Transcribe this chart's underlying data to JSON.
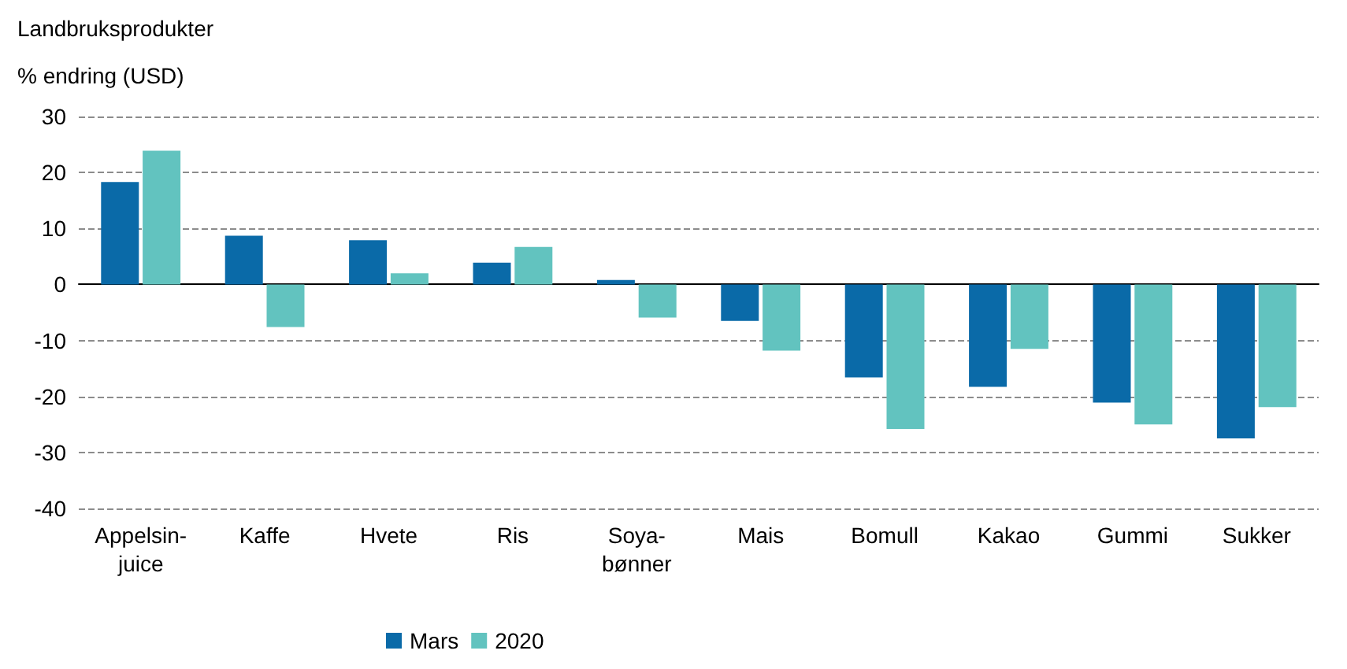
{
  "chart_data": {
    "type": "bar",
    "title": "Landbruksprodukter",
    "ylabel": "% endring (USD)",
    "categories": [
      "Appelsin-\njuice",
      "Kaffe",
      "Hvete",
      "Ris",
      "Soya-\nbønner",
      "Mais",
      "Bomull",
      "Kakao",
      "Gummi",
      "Sukker"
    ],
    "series": [
      {
        "name": "Mars",
        "color": "#0a6aa8",
        "values": [
          18.3,
          8.7,
          7.9,
          3.9,
          0.8,
          -6.5,
          -16.6,
          -18.3,
          -21.1,
          -27.5
        ]
      },
      {
        "name": "2020",
        "color": "#62c3bf",
        "values": [
          23.9,
          -7.6,
          2,
          6.7,
          -5.9,
          -11.8,
          -25.8,
          -11.5,
          -25,
          -21.9
        ]
      }
    ],
    "ylim": [
      -40,
      30
    ],
    "yticks": [
      -40,
      -30,
      -20,
      -10,
      0,
      10,
      20,
      30
    ],
    "grid": "y",
    "legend": "bottom"
  }
}
